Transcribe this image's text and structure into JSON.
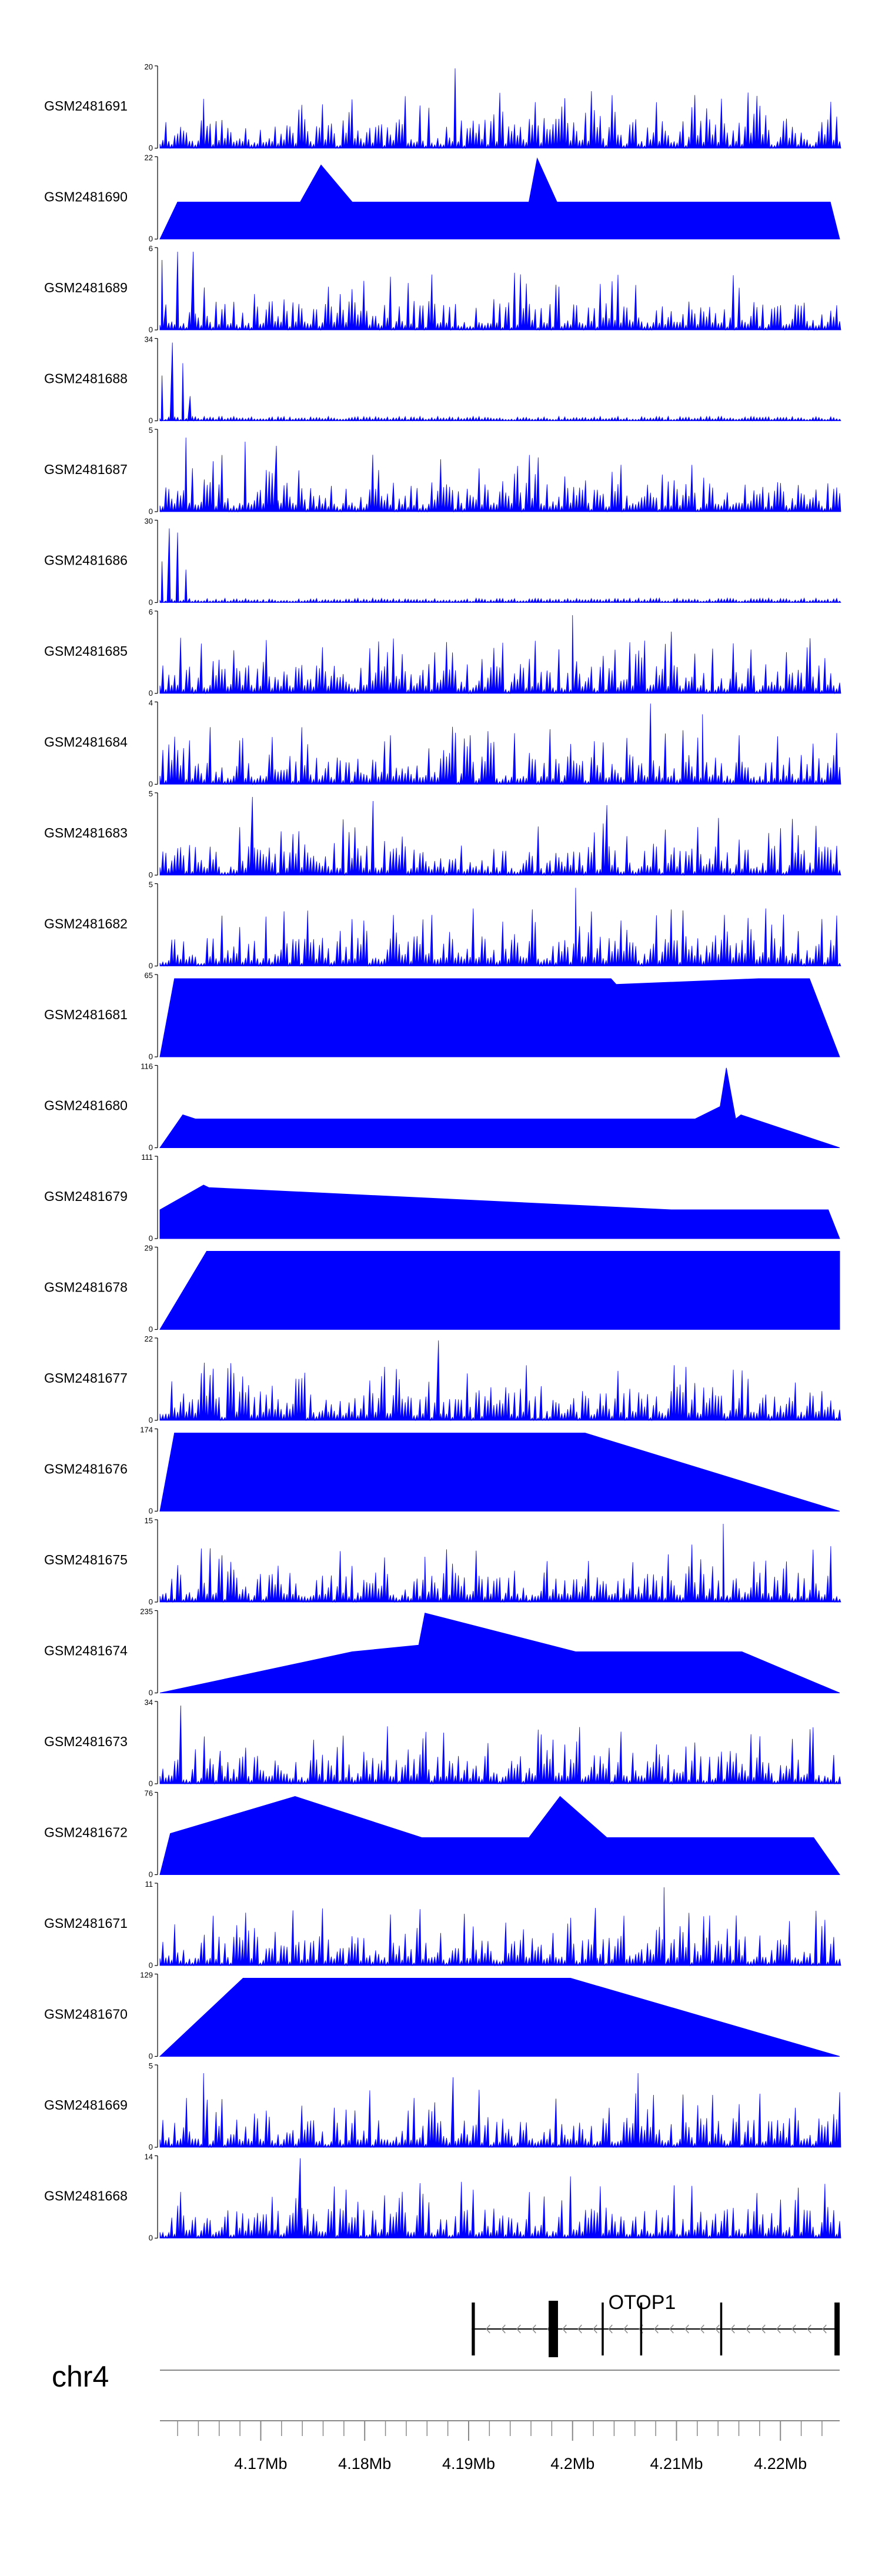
{
  "chart_data": {
    "type": "area",
    "title": "",
    "chromosome": "chr4",
    "xlim": [
      4.1603,
      4.2257
    ],
    "x_unit": "Mb",
    "x_ticks": [
      {
        "value": 4.17,
        "label": "4.17Mb"
      },
      {
        "value": 4.18,
        "label": "4.18Mb"
      },
      {
        "value": 4.19,
        "label": "4.19Mb"
      },
      {
        "value": 4.2,
        "label": "4.2Mb"
      },
      {
        "value": 4.21,
        "label": "4.21Mb"
      },
      {
        "value": 4.22,
        "label": "4.22Mb"
      }
    ],
    "minor_tick_step": 0.002,
    "series_color": "#0000ff",
    "tracks": [
      {
        "name": "GSM2481691",
        "ymax": 20,
        "ymin": 0,
        "style": "dense",
        "seed": 11,
        "peaks": [
          [
            4.1645,
            0.6
          ],
          [
            4.1768,
            0.3
          ],
          [
            4.1887,
            0.97
          ]
        ],
        "start": 4.1603,
        "end": 4.2257
      },
      {
        "name": "GSM2481690",
        "ymax": 22,
        "ymin": 0,
        "style": "sparse",
        "peaks": [
          [
            4.162,
            0.45
          ],
          [
            4.164,
            0.45
          ],
          [
            4.1655,
            0.45
          ],
          [
            4.167,
            0.45
          ],
          [
            4.1688,
            0.45
          ],
          [
            4.1715,
            0.45
          ],
          [
            4.1738,
            0.45
          ],
          [
            4.1758,
            0.9
          ],
          [
            4.1788,
            0.45
          ],
          [
            4.1818,
            0.45
          ],
          [
            4.1848,
            0.45
          ],
          [
            4.1878,
            0.45
          ],
          [
            4.1908,
            0.45
          ],
          [
            4.1935,
            0.45
          ],
          [
            4.1958,
            0.45
          ],
          [
            4.1966,
            0.98
          ],
          [
            4.1985,
            0.45
          ],
          [
            4.2005,
            0.45
          ],
          [
            4.2025,
            0.45
          ],
          [
            4.2048,
            0.45
          ],
          [
            4.2068,
            0.45
          ],
          [
            4.2092,
            0.45
          ],
          [
            4.2118,
            0.45
          ],
          [
            4.2143,
            0.45
          ],
          [
            4.2173,
            0.45
          ],
          [
            4.2208,
            0.45
          ],
          [
            4.2248,
            0.45
          ]
        ],
        "start": 4.1603,
        "end": 4.2257
      },
      {
        "name": "GSM2481689",
        "ymax": 6,
        "ymin": 0,
        "style": "dense",
        "seed": 23,
        "peaks": [
          [
            4.1605,
            0.85
          ],
          [
            4.162,
            0.95
          ],
          [
            4.1635,
            0.95
          ]
        ],
        "start": 4.1603,
        "end": 4.2257
      },
      {
        "name": "GSM2481688",
        "ymax": 34,
        "ymin": 0,
        "style": "early",
        "seed": 31,
        "peaks": [
          [
            4.1605,
            0.55
          ],
          [
            4.1615,
            0.95
          ],
          [
            4.1625,
            0.7
          ],
          [
            4.1632,
            0.3
          ]
        ],
        "start": 4.1603,
        "end": 4.2257
      },
      {
        "name": "GSM2481687",
        "ymax": 5,
        "ymin": 0,
        "style": "dense",
        "seed": 47,
        "peaks": [
          [
            4.1628,
            0.9
          ],
          [
            4.1685,
            0.85
          ],
          [
            4.1715,
            0.8
          ]
        ],
        "start": 4.1603,
        "end": 4.2257
      },
      {
        "name": "GSM2481686",
        "ymax": 30,
        "ymin": 0,
        "style": "early",
        "seed": 53,
        "peaks": [
          [
            4.1605,
            0.5
          ],
          [
            4.1612,
            0.9
          ],
          [
            4.162,
            0.85
          ],
          [
            4.1628,
            0.4
          ]
        ],
        "start": 4.1603,
        "end": 4.2257
      },
      {
        "name": "GSM2481685",
        "ymax": 6,
        "ymin": 0,
        "style": "dense",
        "seed": 61,
        "peaks": [
          [
            4.2,
            0.95
          ],
          [
            4.2095,
            0.75
          ]
        ],
        "start": 4.1603,
        "end": 4.2257
      },
      {
        "name": "GSM2481684",
        "ymax": 4,
        "ymin": 0,
        "style": "dense",
        "seed": 73,
        "peaks": [
          [
            4.2075,
            0.98
          ],
          [
            4.2125,
            0.85
          ]
        ],
        "start": 4.1603,
        "end": 4.2257
      },
      {
        "name": "GSM2481683",
        "ymax": 5,
        "ymin": 0,
        "style": "dense",
        "seed": 83,
        "peaks": [
          [
            4.1692,
            0.95
          ],
          [
            4.1808,
            0.9
          ],
          [
            4.2033,
            0.85
          ]
        ],
        "start": 4.1603,
        "end": 4.2257
      },
      {
        "name": "GSM2481682",
        "ymax": 5,
        "ymin": 0,
        "style": "dense",
        "seed": 97,
        "peaks": [
          [
            4.1705,
            0.6
          ],
          [
            4.2003,
            0.95
          ]
        ],
        "start": 4.1603,
        "end": 4.2257
      },
      {
        "name": "GSM2481681",
        "ymax": 65,
        "ymin": 0,
        "style": "sparse",
        "peaks": [
          [
            4.1617,
            0.95
          ],
          [
            4.164,
            0.95
          ],
          [
            4.1658,
            0.95
          ],
          [
            4.2037,
            0.95
          ],
          [
            4.2042,
            0.88
          ],
          [
            4.2179,
            0.95
          ],
          [
            4.2228,
            0.95
          ]
        ],
        "start": 4.1603,
        "end": 4.2257
      },
      {
        "name": "GSM2481680",
        "ymax": 116,
        "ymin": 0,
        "style": "sparse",
        "peaks": [
          [
            4.1625,
            0.4
          ],
          [
            4.1637,
            0.35
          ],
          [
            4.1683,
            0.35
          ],
          [
            4.178,
            0.35
          ],
          [
            4.1898,
            0.35
          ],
          [
            4.1948,
            0.35
          ],
          [
            4.2048,
            0.35
          ],
          [
            4.2092,
            0.35
          ],
          [
            4.2118,
            0.35
          ],
          [
            4.2142,
            0.5
          ],
          [
            4.2148,
            0.97
          ],
          [
            4.2157,
            0.35
          ],
          [
            4.2162,
            0.4
          ]
        ],
        "start": 4.1603,
        "end": 4.2257
      },
      {
        "name": "GSM2481679",
        "ymax": 111,
        "ymin": 0,
        "style": "sparse",
        "peaks": [
          [
            4.1603,
            0.35
          ],
          [
            4.1645,
            0.65
          ],
          [
            4.165,
            0.62
          ],
          [
            4.2095,
            0.35
          ],
          [
            4.2148,
            0.35
          ],
          [
            4.2203,
            0.35
          ],
          [
            4.2233,
            0.35
          ],
          [
            4.2246,
            0.35
          ]
        ],
        "start": 4.1603,
        "end": 4.2257
      },
      {
        "name": "GSM2481678",
        "ymax": 29,
        "ymin": 0,
        "style": "sparse",
        "peaks": [
          [
            4.1648,
            0.95
          ],
          [
            4.1775,
            0.95
          ],
          [
            4.1875,
            0.95
          ],
          [
            4.1958,
            0.95
          ],
          [
            4.1975,
            0.95
          ],
          [
            4.1993,
            0.95
          ],
          [
            4.2013,
            0.95
          ],
          [
            4.2047,
            0.95
          ],
          [
            4.2065,
            0.95
          ],
          [
            4.2138,
            0.95
          ],
          [
            4.2192,
            0.95
          ],
          [
            4.2257,
            0.95
          ]
        ],
        "start": 4.1603,
        "end": 4.2257
      },
      {
        "name": "GSM2481677",
        "ymax": 22,
        "ymin": 0,
        "style": "dense",
        "seed": 103,
        "peaks": [
          [
            4.1871,
            0.97
          ],
          [
            4.1648,
            0.3
          ],
          [
            4.1763,
            0.25
          ]
        ],
        "start": 4.1603,
        "end": 4.2257
      },
      {
        "name": "GSM2481676",
        "ymax": 174,
        "ymin": 0,
        "style": "sparse",
        "peaks": [
          [
            4.1617,
            0.95
          ],
          [
            4.2012,
            0.95
          ]
        ],
        "start": 4.1603,
        "end": 4.2257
      },
      {
        "name": "GSM2481675",
        "ymax": 15,
        "ymin": 0,
        "style": "dense",
        "seed": 113,
        "peaks": [
          [
            4.2145,
            0.95
          ],
          [
            4.1858,
            0.55
          ]
        ],
        "start": 4.1603,
        "end": 4.2257
      },
      {
        "name": "GSM2481674",
        "ymax": 235,
        "ymin": 0,
        "style": "sparse",
        "peaks": [
          [
            4.1788,
            0.5
          ],
          [
            4.1852,
            0.58
          ],
          [
            4.1858,
            0.97
          ],
          [
            4.2003,
            0.5
          ],
          [
            4.2163,
            0.5
          ]
        ],
        "start": 4.1603,
        "end": 4.2257
      },
      {
        "name": "GSM2481673",
        "ymax": 34,
        "ymin": 0,
        "style": "dense",
        "seed": 127,
        "peaks": [
          [
            4.1623,
            0.95
          ],
          [
            4.1661,
            0.4
          ]
        ],
        "start": 4.1603,
        "end": 4.2257
      },
      {
        "name": "GSM2481672",
        "ymax": 76,
        "ymin": 0,
        "style": "sparse",
        "peaks": [
          [
            4.1613,
            0.5
          ],
          [
            4.1733,
            0.95
          ],
          [
            4.1855,
            0.45
          ],
          [
            4.1938,
            0.45
          ],
          [
            4.1958,
            0.45
          ],
          [
            4.1988,
            0.95
          ],
          [
            4.2033,
            0.45
          ],
          [
            4.2175,
            0.45
          ],
          [
            4.2192,
            0.45
          ],
          [
            4.2232,
            0.45
          ]
        ],
        "start": 4.1603,
        "end": 4.2257
      },
      {
        "name": "GSM2481671",
        "ymax": 11,
        "ymin": 0,
        "style": "dense",
        "seed": 137,
        "peaks": [
          [
            4.2088,
            0.95
          ],
          [
            4.2022,
            0.7
          ]
        ],
        "start": 4.1603,
        "end": 4.2257
      },
      {
        "name": "GSM2481670",
        "ymax": 129,
        "ymin": 0,
        "style": "sparse",
        "peaks": [
          [
            4.1683,
            0.95
          ],
          [
            4.1998,
            0.95
          ]
        ],
        "start": 4.1603,
        "end": 4.2257
      },
      {
        "name": "GSM2481669",
        "ymax": 5,
        "ymin": 0,
        "style": "dense",
        "seed": 149,
        "peaks": [
          [
            4.1645,
            0.9
          ],
          [
            4.1885,
            0.85
          ],
          [
            4.2063,
            0.9
          ]
        ],
        "start": 4.1603,
        "end": 4.2257
      },
      {
        "name": "GSM2481668",
        "ymax": 14,
        "ymin": 0,
        "style": "dense",
        "seed": 157,
        "peaks": [
          [
            4.1738,
            0.97
          ],
          [
            4.1998,
            0.75
          ]
        ],
        "start": 4.1603,
        "end": 4.2257
      }
    ],
    "gene": {
      "name": "OTOP1",
      "start": 4.1903,
      "end": 4.2257,
      "strand": "-",
      "exons": [
        [
          4.1903,
          4.1906
        ],
        [
          4.1977,
          4.1986
        ],
        [
          4.2028,
          4.203
        ],
        [
          4.2065,
          4.2067
        ],
        [
          4.2142,
          4.2144
        ],
        [
          4.2252,
          4.2257
        ]
      ]
    }
  }
}
